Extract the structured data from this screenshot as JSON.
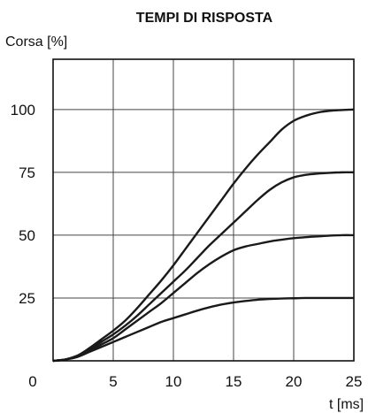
{
  "chart_data": {
    "type": "line",
    "title": "TEMPI DI RISPOSTA",
    "ylabel": "Corsa [%]",
    "xlabel": "t [ms]",
    "xlim": [
      0,
      25
    ],
    "ylim": [
      0,
      120
    ],
    "xticks": [
      0,
      5,
      10,
      15,
      20,
      25
    ],
    "yticks": [
      25,
      50,
      75,
      100
    ],
    "x_tick_labels": [
      "0",
      "5",
      "10",
      "15",
      "20",
      "25"
    ],
    "y_tick_labels": [
      "25",
      "50",
      "75",
      "100"
    ],
    "grid": true,
    "series": [
      {
        "x": [
          0,
          1,
          2,
          3,
          4,
          5,
          6,
          7,
          8,
          9,
          10,
          11,
          12,
          13,
          14,
          15,
          16,
          17,
          18,
          19,
          20,
          21,
          22,
          23,
          24,
          25
        ],
        "y": [
          0,
          0.5,
          2,
          5,
          8.5,
          12,
          16,
          21,
          26.5,
          32,
          38,
          44.5,
          51,
          57.5,
          64,
          70.5,
          76.5,
          82,
          87,
          92,
          95.5,
          97.5,
          98.8,
          99.5,
          99.8,
          100
        ]
      },
      {
        "x": [
          0,
          1,
          2,
          3,
          4,
          5,
          6,
          7,
          8,
          9,
          10,
          11,
          12,
          13,
          14,
          15,
          16,
          17,
          18,
          19,
          20,
          21,
          22,
          23,
          24,
          25
        ],
        "y": [
          0,
          0.5,
          2,
          4.5,
          7.5,
          10.5,
          14,
          18,
          22.5,
          27,
          31.5,
          36,
          41,
          46,
          50.5,
          55,
          59.5,
          64,
          68,
          71,
          73,
          74,
          74.5,
          74.8,
          75,
          75
        ]
      },
      {
        "x": [
          0,
          1,
          2,
          3,
          4,
          5,
          6,
          7,
          8,
          9,
          10,
          11,
          12,
          13,
          14,
          15,
          16,
          17,
          18,
          19,
          20,
          21,
          22,
          23,
          24,
          25
        ],
        "y": [
          0,
          0.5,
          2,
          4,
          6.5,
          9,
          12.5,
          16,
          19.5,
          23,
          27,
          31,
          35,
          38.5,
          41.5,
          44,
          45.5,
          46.5,
          47.5,
          48.2,
          48.8,
          49.2,
          49.5,
          49.8,
          50,
          50
        ]
      },
      {
        "x": [
          0,
          1,
          2,
          3,
          4,
          5,
          6,
          7,
          8,
          9,
          10,
          11,
          12,
          13,
          14,
          15,
          16,
          17,
          18,
          19,
          20,
          21,
          22,
          23,
          24,
          25
        ],
        "y": [
          0,
          0.5,
          1.5,
          3.5,
          5.5,
          7.5,
          9.5,
          11.5,
          13.5,
          15.5,
          17,
          18.5,
          20,
          21.3,
          22.4,
          23.2,
          23.8,
          24.3,
          24.6,
          24.8,
          24.9,
          25,
          25,
          25,
          25,
          25
        ]
      }
    ]
  }
}
